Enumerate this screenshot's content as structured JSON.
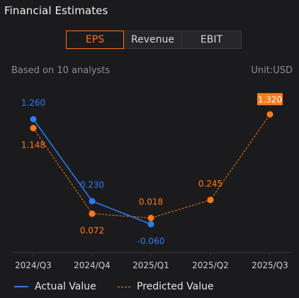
{
  "title": "Financial Estimates",
  "tabs": [
    {
      "label": "EPS",
      "active": true
    },
    {
      "label": "Revenue",
      "active": false
    },
    {
      "label": "EBIT",
      "active": false
    }
  ],
  "subtitle": "Based on 10 analysts",
  "unit": "Unit:USD",
  "legend": {
    "actual": "Actual Value",
    "predicted": "Predicted Value"
  },
  "colors": {
    "actual": "#2b7cf0",
    "predicted": "#ff7a1a",
    "axis": "#3a3a3d",
    "label": "#cfcfcf",
    "highlight_text": "#ffffff"
  },
  "chart_data": {
    "type": "line",
    "categories": [
      "2024/Q3",
      "2024/Q4",
      "2025/Q1",
      "2025/Q2",
      "2025/Q3"
    ],
    "series": [
      {
        "name": "Actual Value",
        "values": [
          1.26,
          0.23,
          -0.06,
          null,
          null
        ],
        "labels": [
          "1.260",
          "0.230",
          "-0.060",
          null,
          null
        ]
      },
      {
        "name": "Predicted Value",
        "values": [
          1.148,
          0.072,
          0.018,
          0.245,
          1.32
        ],
        "labels": [
          "1.148",
          "0.072",
          "0.018",
          "0.245",
          "1.320"
        ]
      }
    ],
    "highlighted": {
      "series": 1,
      "index": 4
    },
    "grid": false
  }
}
